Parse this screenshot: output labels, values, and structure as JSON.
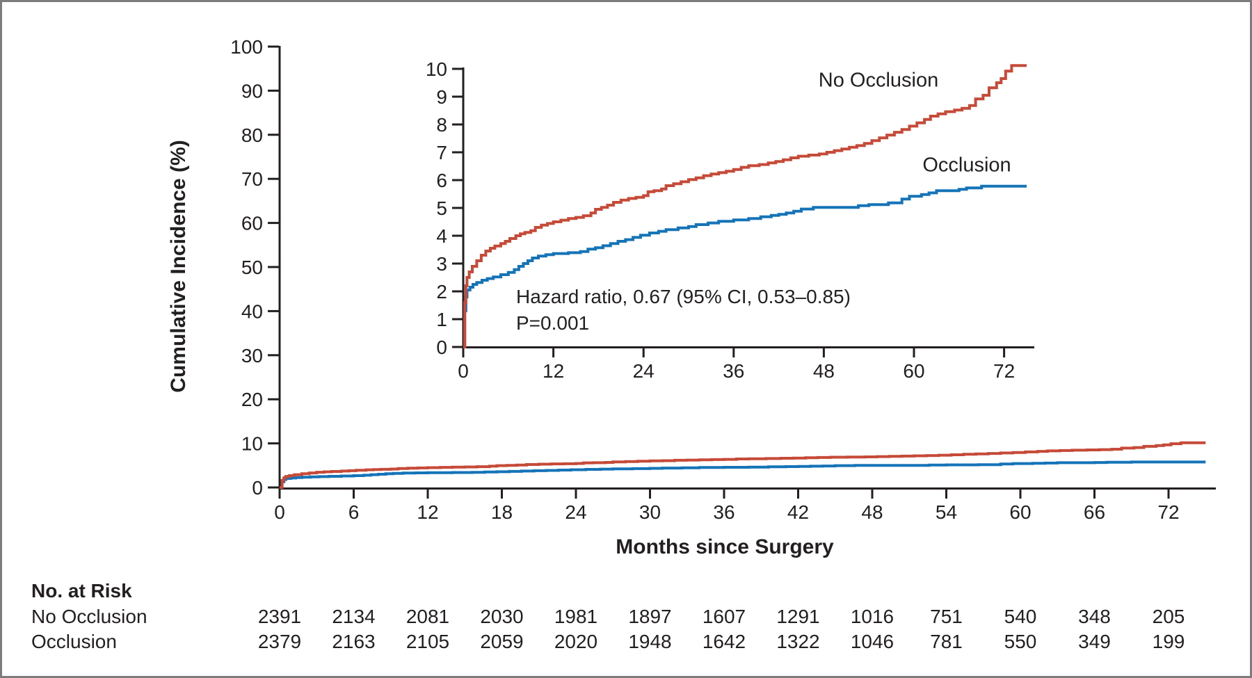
{
  "colors": {
    "axis": "#231f20",
    "text": "#231f20",
    "background": "#ffffff",
    "border": "#7c7c7c",
    "no_occlusion_red": "#c64a38",
    "occlusion_blue": "#1573b8"
  },
  "chart_data": {
    "type": "line",
    "kind": "cumulative-incidence-step-curves-with-inset",
    "xlabel": "Months since Surgery",
    "ylabel": "Cumulative Incidence (%)",
    "main_axis": {
      "xlim": [
        0,
        76
      ],
      "ylim": [
        0,
        100
      ],
      "xticks": [
        0,
        6,
        12,
        18,
        24,
        30,
        36,
        42,
        48,
        54,
        60,
        66,
        72
      ],
      "yticks": [
        0,
        10,
        20,
        30,
        40,
        50,
        60,
        70,
        80,
        90,
        100
      ],
      "grid": false
    },
    "inset_axis": {
      "xlim": [
        0,
        76
      ],
      "ylim": [
        0,
        10
      ],
      "xticks": [
        0,
        12,
        24,
        36,
        48,
        60,
        72
      ],
      "yticks": [
        0,
        1,
        2,
        3,
        4,
        5,
        6,
        7,
        8,
        9,
        10
      ],
      "grid": false
    },
    "annotation": {
      "line1": "Hazard ratio, 0.67 (95% CI, 0.53–0.85)",
      "line2": "P=0.001"
    },
    "series": [
      {
        "name": "No Occlusion",
        "color": "#c64a38",
        "steps": [
          [
            0,
            0
          ],
          [
            0.2,
            1.6
          ],
          [
            0.35,
            2.2
          ],
          [
            0.5,
            2.5
          ],
          [
            0.8,
            2.7
          ],
          [
            1.2,
            2.9
          ],
          [
            1.8,
            3.1
          ],
          [
            2.4,
            3.3
          ],
          [
            3,
            3.45
          ],
          [
            3.6,
            3.55
          ],
          [
            4.2,
            3.63
          ],
          [
            5,
            3.72
          ],
          [
            5.6,
            3.8
          ],
          [
            6.2,
            3.9
          ],
          [
            7,
            4.0
          ],
          [
            7.6,
            4.07
          ],
          [
            8.2,
            4.12
          ],
          [
            9,
            4.18
          ],
          [
            9.6,
            4.3
          ],
          [
            10.4,
            4.38
          ],
          [
            11.2,
            4.44
          ],
          [
            12,
            4.5
          ],
          [
            13,
            4.56
          ],
          [
            14,
            4.62
          ],
          [
            15,
            4.66
          ],
          [
            16,
            4.72
          ],
          [
            17,
            4.82
          ],
          [
            17.6,
            4.95
          ],
          [
            18.4,
            5.02
          ],
          [
            19.2,
            5.1
          ],
          [
            20,
            5.2
          ],
          [
            21,
            5.28
          ],
          [
            22,
            5.34
          ],
          [
            23,
            5.38
          ],
          [
            24,
            5.44
          ],
          [
            24.6,
            5.58
          ],
          [
            25.4,
            5.62
          ],
          [
            26.4,
            5.68
          ],
          [
            27,
            5.8
          ],
          [
            28,
            5.87
          ],
          [
            29,
            5.94
          ],
          [
            30,
            6.02
          ],
          [
            31,
            6.08
          ],
          [
            32,
            6.16
          ],
          [
            33,
            6.22
          ],
          [
            34,
            6.27
          ],
          [
            35,
            6.32
          ],
          [
            36,
            6.38
          ],
          [
            37,
            6.46
          ],
          [
            38,
            6.52
          ],
          [
            39.4,
            6.56
          ],
          [
            40.6,
            6.62
          ],
          [
            41.6,
            6.67
          ],
          [
            42.6,
            6.73
          ],
          [
            43.6,
            6.8
          ],
          [
            44.6,
            6.86
          ],
          [
            46,
            6.9
          ],
          [
            47.4,
            6.94
          ],
          [
            48.4,
            7.0
          ],
          [
            49.4,
            7.06
          ],
          [
            50.4,
            7.12
          ],
          [
            51.4,
            7.18
          ],
          [
            52.4,
            7.24
          ],
          [
            53.4,
            7.32
          ],
          [
            54.4,
            7.42
          ],
          [
            55.4,
            7.52
          ],
          [
            56.4,
            7.62
          ],
          [
            57.4,
            7.72
          ],
          [
            58.4,
            7.82
          ],
          [
            59.4,
            7.94
          ],
          [
            60.4,
            8.06
          ],
          [
            61.4,
            8.18
          ],
          [
            62.2,
            8.3
          ],
          [
            63.2,
            8.38
          ],
          [
            64.2,
            8.46
          ],
          [
            65.4,
            8.52
          ],
          [
            66.4,
            8.58
          ],
          [
            67.4,
            8.68
          ],
          [
            68.2,
            8.92
          ],
          [
            69.2,
            9.05
          ],
          [
            70,
            9.32
          ],
          [
            71,
            9.5
          ],
          [
            71.6,
            9.65
          ],
          [
            72.2,
            9.92
          ],
          [
            73,
            10.12
          ],
          [
            75,
            10.12
          ]
        ]
      },
      {
        "name": "Occlusion",
        "color": "#1573b8",
        "steps": [
          [
            0,
            0
          ],
          [
            0.2,
            1.3
          ],
          [
            0.35,
            1.8
          ],
          [
            0.5,
            2.05
          ],
          [
            0.9,
            2.15
          ],
          [
            1.3,
            2.25
          ],
          [
            1.8,
            2.32
          ],
          [
            2.5,
            2.4
          ],
          [
            3.2,
            2.46
          ],
          [
            4,
            2.52
          ],
          [
            5,
            2.6
          ],
          [
            6,
            2.68
          ],
          [
            6.8,
            2.78
          ],
          [
            7.4,
            2.9
          ],
          [
            8,
            3.0
          ],
          [
            8.6,
            3.1
          ],
          [
            9.2,
            3.2
          ],
          [
            10,
            3.27
          ],
          [
            11,
            3.32
          ],
          [
            12,
            3.36
          ],
          [
            14,
            3.39
          ],
          [
            15.6,
            3.43
          ],
          [
            16.6,
            3.52
          ],
          [
            17.6,
            3.57
          ],
          [
            18.6,
            3.64
          ],
          [
            19.6,
            3.72
          ],
          [
            20.6,
            3.8
          ],
          [
            21.6,
            3.86
          ],
          [
            22.6,
            3.94
          ],
          [
            23.6,
            4.02
          ],
          [
            24.8,
            4.1
          ],
          [
            26,
            4.16
          ],
          [
            27,
            4.22
          ],
          [
            28.6,
            4.28
          ],
          [
            30,
            4.33
          ],
          [
            31,
            4.4
          ],
          [
            32.6,
            4.46
          ],
          [
            34,
            4.52
          ],
          [
            36,
            4.57
          ],
          [
            38,
            4.62
          ],
          [
            39.6,
            4.68
          ],
          [
            41,
            4.73
          ],
          [
            42,
            4.77
          ],
          [
            43,
            4.82
          ],
          [
            44,
            4.88
          ],
          [
            45,
            4.96
          ],
          [
            46.6,
            5.02
          ],
          [
            52.6,
            5.08
          ],
          [
            54,
            5.12
          ],
          [
            56.6,
            5.18
          ],
          [
            58.4,
            5.32
          ],
          [
            59.4,
            5.42
          ],
          [
            61,
            5.48
          ],
          [
            62,
            5.54
          ],
          [
            63,
            5.62
          ],
          [
            66,
            5.67
          ],
          [
            67,
            5.72
          ],
          [
            69,
            5.78
          ],
          [
            75,
            5.78
          ]
        ]
      }
    ],
    "risk_table": {
      "title": "No. at Risk",
      "months": [
        0,
        6,
        12,
        18,
        24,
        30,
        36,
        42,
        48,
        54,
        60,
        66,
        72
      ],
      "rows": [
        {
          "label": "No Occlusion",
          "values": [
            2391,
            2134,
            2081,
            2030,
            1981,
            1897,
            1607,
            1291,
            1016,
            751,
            540,
            348,
            205
          ]
        },
        {
          "label": "Occlusion",
          "values": [
            2379,
            2163,
            2105,
            2059,
            2020,
            1948,
            1642,
            1322,
            1046,
            781,
            550,
            349,
            199
          ]
        }
      ]
    }
  }
}
